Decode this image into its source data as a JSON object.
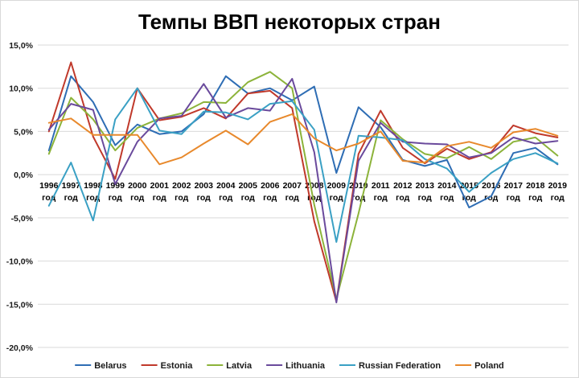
{
  "chart_data": {
    "type": "line",
    "title": "Темпы ВВП некоторых стран",
    "xlabel": "",
    "ylabel": "",
    "ylim": [
      -20,
      15
    ],
    "yticks": [
      15,
      10,
      5,
      0,
      -5,
      -10,
      -15,
      -20
    ],
    "ytick_labels": [
      "15,0%",
      "10,0%",
      "5,0%",
      "0,0%",
      "-5,0%",
      "-10,0%",
      "-15,0%",
      "-20,0%"
    ],
    "grid": true,
    "legend_position": "bottom",
    "categories": [
      "1996",
      "1997",
      "1998",
      "1999",
      "2000",
      "2001",
      "2002",
      "2003",
      "2004",
      "2005",
      "2006",
      "2007",
      "2008",
      "2009",
      "2010",
      "2011",
      "2012",
      "2013",
      "2014",
      "2015",
      "2016",
      "2017",
      "2018",
      "2019"
    ],
    "category_suffix": "год",
    "series": [
      {
        "name": "Belarus",
        "color": "#2e6db4",
        "values": [
          2.8,
          11.4,
          8.4,
          3.4,
          5.8,
          4.7,
          5.0,
          7.0,
          11.4,
          9.4,
          10.0,
          8.6,
          10.2,
          0.2,
          7.8,
          5.5,
          1.7,
          1.0,
          1.7,
          -3.8,
          -2.5,
          2.5,
          3.1,
          1.2
        ]
      },
      {
        "name": "Estonia",
        "color": "#c0392b",
        "values": [
          5.0,
          13.0,
          4.4,
          -0.5,
          10.0,
          6.3,
          6.7,
          7.7,
          6.5,
          9.4,
          9.7,
          7.7,
          -5.4,
          -14.7,
          2.4,
          7.4,
          3.1,
          1.3,
          3.0,
          1.8,
          2.6,
          5.7,
          4.8,
          4.3
        ]
      },
      {
        "name": "Latvia",
        "color": "#8cb33a",
        "values": [
          2.4,
          8.9,
          6.4,
          2.8,
          5.4,
          6.5,
          7.1,
          8.4,
          8.3,
          10.7,
          11.9,
          10.0,
          -3.5,
          -14.4,
          -4.5,
          6.3,
          4.1,
          2.4,
          1.9,
          3.2,
          1.8,
          3.8,
          4.3,
          2.2
        ]
      },
      {
        "name": "Lithuania",
        "color": "#6a4a9c",
        "values": [
          5.2,
          8.2,
          7.5,
          -1.1,
          3.8,
          6.5,
          6.8,
          10.5,
          6.6,
          7.7,
          7.4,
          11.1,
          2.6,
          -14.8,
          1.6,
          6.0,
          3.8,
          3.6,
          3.5,
          2.0,
          2.5,
          4.3,
          3.6,
          3.9
        ]
      },
      {
        "name": "Russian Federation",
        "color": "#3aa0c4",
        "values": [
          -3.6,
          1.4,
          -5.3,
          6.4,
          10.0,
          5.1,
          4.7,
          7.3,
          7.2,
          6.4,
          8.2,
          8.5,
          5.2,
          -7.8,
          4.5,
          4.3,
          4.0,
          1.8,
          0.7,
          -2.0,
          0.2,
          1.8,
          2.5,
          1.3
        ]
      },
      {
        "name": "Poland",
        "color": "#e8892c",
        "values": [
          6.0,
          6.5,
          4.6,
          4.6,
          4.6,
          1.2,
          2.0,
          3.6,
          5.1,
          3.5,
          6.1,
          7.0,
          4.2,
          2.8,
          3.6,
          5.0,
          1.6,
          1.4,
          3.3,
          3.8,
          3.1,
          4.9,
          5.3,
          4.5
        ]
      }
    ]
  }
}
